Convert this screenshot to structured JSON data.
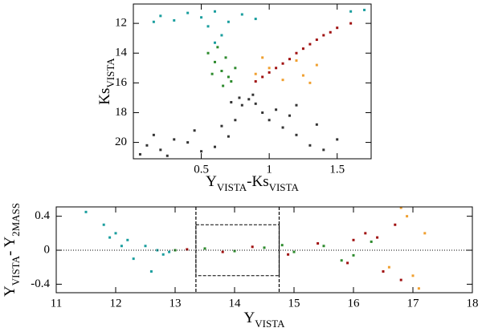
{
  "chart_data": [
    {
      "type": "scatter",
      "xlabel": [
        {
          "text": "Y",
          "sub": false
        },
        {
          "text": "VISTA",
          "sub": true
        },
        {
          "text": "-Ks",
          "sub": false
        },
        {
          "text": "VISTA",
          "sub": true
        }
      ],
      "ylabel": [
        {
          "text": "Ks",
          "sub": false
        },
        {
          "text": "VISTA",
          "sub": true
        }
      ],
      "xlim": [
        0,
        1.75
      ],
      "ylim": [
        21.1,
        10.7
      ],
      "xticks": [
        0.5,
        1,
        1.5
      ],
      "yticks": [
        12,
        14,
        16,
        18,
        20
      ],
      "series": [
        {
          "color": "#333333",
          "x": [
            0.1,
            0.2,
            0.3,
            0.4,
            0.15,
            0.5,
            0.6,
            0.7,
            0.75,
            0.8,
            0.78,
            0.85,
            0.9,
            0.72,
            0.95,
            1.0,
            1.1,
            1.2,
            1.3,
            1.4,
            1.05,
            1.15,
            0.05,
            0.25,
            0.65,
            0.88,
            1.2,
            1.35,
            1.5,
            0.45
          ],
          "values": [
            20.2,
            20.5,
            19.8,
            20.0,
            19.5,
            20.6,
            20.3,
            19.6,
            18.5,
            17.5,
            17.0,
            17.1,
            17.4,
            17.3,
            18.0,
            18.5,
            19.0,
            19.5,
            20.2,
            20.5,
            17.8,
            18.2,
            20.8,
            20.9,
            18.9,
            16.8,
            17.5,
            18.8,
            19.8,
            19.2
          ]
        },
        {
          "color": "#1a9e9e",
          "x": [
            0.2,
            0.3,
            0.4,
            0.5,
            0.6,
            0.7,
            0.55,
            0.65,
            0.6,
            0.15,
            0.8,
            0.9,
            1.6,
            1.7
          ],
          "values": [
            11.5,
            11.8,
            11.3,
            11.6,
            11.2,
            11.9,
            12.2,
            12.8,
            13.3,
            11.9,
            11.4,
            11.7,
            11.2,
            11.1
          ]
        },
        {
          "color": "#2e8b2e",
          "x": [
            0.55,
            0.6,
            0.65,
            0.7,
            0.75,
            0.62,
            0.68,
            0.58,
            0.72,
            0.66
          ],
          "values": [
            14.0,
            14.6,
            15.2,
            15.6,
            15.0,
            13.6,
            14.3,
            15.4,
            15.9,
            16.2
          ]
        },
        {
          "color": "#f0a030",
          "x": [
            0.9,
            1.0,
            1.2,
            1.25,
            1.3,
            1.1,
            0.95,
            1.35
          ],
          "values": [
            15.4,
            15.0,
            14.5,
            15.5,
            16.0,
            15.8,
            14.3,
            14.8
          ]
        },
        {
          "color": "#a01010",
          "x": [
            0.9,
            0.95,
            1.0,
            1.05,
            1.1,
            1.15,
            1.2,
            1.25,
            1.3,
            1.35,
            1.4,
            1.45,
            1.5,
            1.6
          ],
          "values": [
            15.9,
            15.6,
            15.3,
            15.0,
            14.7,
            14.4,
            14.0,
            13.7,
            13.4,
            13.1,
            12.8,
            12.6,
            12.3,
            12.0
          ]
        }
      ]
    },
    {
      "type": "scatter",
      "xlabel": [
        {
          "text": "Y",
          "sub": false
        },
        {
          "text": "VISTA",
          "sub": true
        }
      ],
      "ylabel": [
        {
          "text": "Y",
          "sub": false
        },
        {
          "text": "VISTA",
          "sub": true
        },
        {
          "text": "- Y",
          "sub": false
        },
        {
          "text": "2MASS",
          "sub": true
        }
      ],
      "xlim": [
        11,
        18
      ],
      "ylim": [
        -0.5,
        0.51
      ],
      "xticks": [
        11,
        12,
        13,
        14,
        15,
        16,
        17,
        18
      ],
      "yticks": [
        -0.4,
        0,
        0.4
      ],
      "vlines": [
        13.35,
        14.75
      ],
      "hlines": [
        0
      ],
      "box": {
        "x": [
          13.35,
          14.75
        ],
        "y": [
          -0.3,
          0.3
        ]
      },
      "series": [
        {
          "color": "#1a9e9e",
          "x": [
            11.5,
            11.8,
            12.0,
            12.2,
            12.5,
            12.7,
            12.9,
            12.3,
            12.6,
            12.1,
            11.9,
            12.8
          ],
          "values": [
            0.45,
            0.3,
            0.2,
            0.12,
            0.05,
            0.0,
            -0.02,
            -0.1,
            -0.25,
            0.05,
            0.15,
            -0.05
          ]
        },
        {
          "color": "#2e8b2e",
          "x": [
            13.0,
            13.5,
            14.0,
            14.5,
            15.0,
            15.5,
            16.0,
            16.3,
            15.8,
            14.8
          ],
          "values": [
            0.0,
            0.02,
            -0.01,
            0.03,
            -0.02,
            0.05,
            -0.06,
            0.1,
            -0.12,
            0.06
          ]
        },
        {
          "color": "#a01010",
          "x": [
            13.2,
            13.8,
            14.3,
            14.9,
            15.4,
            15.9,
            16.2,
            16.5,
            16.7,
            16.8,
            16.4,
            16.0
          ],
          "values": [
            0.01,
            -0.02,
            0.04,
            -0.05,
            0.08,
            -0.15,
            0.2,
            -0.25,
            0.3,
            -0.35,
            0.15,
            0.12
          ]
        },
        {
          "color": "#f0a030",
          "x": [
            16.9,
            17.0,
            17.2,
            16.8,
            17.1,
            16.6
          ],
          "values": [
            0.4,
            -0.3,
            0.2,
            0.5,
            -0.45,
            -0.2
          ]
        }
      ]
    }
  ]
}
